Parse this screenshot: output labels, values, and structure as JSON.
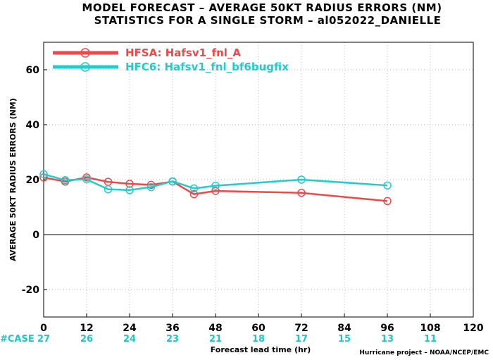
{
  "chart_data": {
    "type": "line",
    "title_lines": [
      "MODEL FORECAST – AVERAGE 50KT RADIUS ERRORS (NM)",
      "STATISTICS FOR A SINGLE STORM – al052022_DANIELLE"
    ],
    "xlabel": "Forecast lead time (hr)",
    "ylabel": "AVERAGE 50KT RADIUS ERRORS (NM)",
    "xlim": [
      0,
      120
    ],
    "ylim": [
      -30,
      70
    ],
    "xticks": [
      0,
      12,
      24,
      36,
      48,
      60,
      72,
      84,
      96,
      108,
      120
    ],
    "yticks": [
      -20,
      0,
      20,
      40,
      60
    ],
    "grid": true,
    "legend_position": "top-left",
    "series": [
      {
        "name": "HFSA: Hafsv1_fnl_A",
        "color": "#f04848",
        "x": [
          0,
          6,
          12,
          18,
          24,
          30,
          36,
          42,
          48,
          72,
          96
        ],
        "y": [
          20.8,
          19.3,
          20.8,
          19.2,
          18.5,
          18.1,
          19.3,
          14.7,
          15.9,
          15.2,
          12.2
        ]
      },
      {
        "name": "HFC6: Hafsv1_fnl_bf6bugfix",
        "color": "#22cccc",
        "x": [
          0,
          6,
          12,
          18,
          24,
          30,
          36,
          42,
          48,
          72,
          96
        ],
        "y": [
          22.0,
          19.8,
          20.1,
          16.5,
          16.2,
          17.3,
          19.4,
          16.8,
          17.8,
          20.0,
          17.9
        ]
      }
    ],
    "case_counts": {
      "label": "#CASE",
      "x": [
        0,
        12,
        24,
        36,
        48,
        60,
        72,
        84,
        96,
        108
      ],
      "values": [
        "27",
        "26",
        "24",
        "23",
        "21",
        "18",
        "17",
        "15",
        "13",
        "11"
      ]
    },
    "credit": "Hurricane project – NOAA/NCEP/EMC"
  }
}
